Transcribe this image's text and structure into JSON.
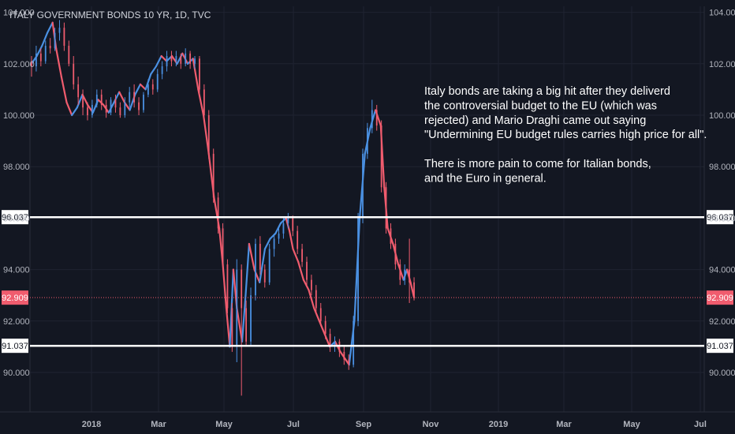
{
  "chart_data": {
    "type": "candlestick",
    "title": "ITALY GOVERNMENT BONDS 10 YR, 1D, TVC",
    "ylim": [
      88.2,
      104.6
    ],
    "y_ticks": [
      "104.000",
      "102.000",
      "100.000",
      "98.000",
      "96.000",
      "94.000",
      "92.000",
      "90.000"
    ],
    "x_ticks": [
      "2018",
      "Mar",
      "May",
      "Jul",
      "Sep",
      "Nov",
      "2019",
      "Mar",
      "May",
      "Jul"
    ],
    "levels": [
      {
        "label": "96.037",
        "value": 96.037,
        "style": "white"
      },
      {
        "label": "91.037",
        "value": 91.037,
        "style": "white"
      },
      {
        "label": "92.909",
        "value": 92.909,
        "style": "last-price"
      }
    ],
    "close_path": [
      [
        0,
        102.0
      ],
      [
        3,
        102.3
      ],
      [
        6,
        102.7
      ],
      [
        9,
        103.2
      ],
      [
        12,
        103.6
      ],
      [
        14,
        102.6
      ],
      [
        17,
        101.5
      ],
      [
        20,
        100.5
      ],
      [
        23,
        100.0
      ],
      [
        26,
        100.3
      ],
      [
        29,
        100.8
      ],
      [
        32,
        100.4
      ],
      [
        35,
        100.1
      ],
      [
        38,
        100.6
      ],
      [
        41,
        100.4
      ],
      [
        44,
        100.1
      ],
      [
        47,
        100.5
      ],
      [
        50,
        100.9
      ],
      [
        53,
        100.5
      ],
      [
        56,
        100.2
      ],
      [
        59,
        100.8
      ],
      [
        62,
        101.2
      ],
      [
        65,
        101.0
      ],
      [
        68,
        101.6
      ],
      [
        71,
        101.9
      ],
      [
        74,
        102.3
      ],
      [
        77,
        102.1
      ],
      [
        80,
        102.3
      ],
      [
        83,
        102.0
      ],
      [
        86,
        102.4
      ],
      [
        89,
        102.0
      ],
      [
        92,
        102.2
      ],
      [
        95,
        101.0
      ],
      [
        98,
        100.0
      ],
      [
        101,
        98.5
      ],
      [
        104,
        96.8
      ],
      [
        107,
        95.6
      ],
      [
        109,
        94.2
      ],
      [
        111,
        92.5
      ],
      [
        113,
        91.0
      ],
      [
        115,
        94.0
      ],
      [
        117,
        92.5
      ],
      [
        120,
        91.2
      ],
      [
        122,
        93.0
      ],
      [
        124,
        95.0
      ],
      [
        127,
        94.0
      ],
      [
        130,
        93.5
      ],
      [
        133,
        94.8
      ],
      [
        136,
        95.2
      ],
      [
        139,
        95.4
      ],
      [
        142,
        95.8
      ],
      [
        145,
        96.0
      ],
      [
        147,
        95.5
      ],
      [
        149,
        94.8
      ],
      [
        152,
        94.3
      ],
      [
        155,
        93.6
      ],
      [
        158,
        93.2
      ],
      [
        161,
        92.5
      ],
      [
        164,
        92.0
      ],
      [
        167,
        91.5
      ],
      [
        170,
        91.0
      ],
      [
        173,
        91.2
      ],
      [
        176,
        90.8
      ],
      [
        179,
        90.5
      ],
      [
        181,
        90.3
      ],
      [
        184,
        92.0
      ],
      [
        187,
        96.0
      ],
      [
        190,
        98.5
      ],
      [
        193,
        99.5
      ],
      [
        196,
        100.2
      ],
      [
        199,
        99.6
      ],
      [
        201,
        97.2
      ],
      [
        203,
        95.6
      ],
      [
        206,
        95.0
      ],
      [
        209,
        94.2
      ],
      [
        212,
        93.6
      ],
      [
        214,
        94.0
      ],
      [
        216,
        93.5
      ],
      [
        218,
        92.909
      ]
    ],
    "ohlc": [
      [
        0,
        102.1,
        102.3,
        101.5,
        101.9
      ],
      [
        1,
        101.9,
        102.7,
        101.7,
        102.4
      ],
      [
        2,
        102.4,
        102.6,
        101.9,
        102.1
      ],
      [
        3,
        102.1,
        102.9,
        102.0,
        102.7
      ],
      [
        4,
        102.7,
        103.0,
        102.4,
        102.6
      ],
      [
        5,
        102.6,
        103.4,
        102.5,
        103.2
      ],
      [
        6,
        103.2,
        103.7,
        102.9,
        103.4
      ],
      [
        7,
        103.4,
        103.6,
        102.5,
        102.7
      ],
      [
        8,
        102.7,
        102.9,
        101.9,
        102.0
      ],
      [
        9,
        102.0,
        102.3,
        101.0,
        101.2
      ],
      [
        10,
        101.2,
        101.5,
        100.4,
        100.7
      ],
      [
        11,
        100.7,
        101.0,
        100.0,
        100.3
      ],
      [
        12,
        100.3,
        100.5,
        99.8,
        100.0
      ],
      [
        13,
        100.0,
        100.6,
        99.9,
        100.4
      ],
      [
        14,
        100.4,
        101.0,
        100.3,
        100.8
      ],
      [
        15,
        100.8,
        101.0,
        100.2,
        100.4
      ],
      [
        16,
        100.4,
        100.6,
        99.9,
        100.1
      ],
      [
        17,
        100.1,
        100.7,
        100.0,
        100.6
      ],
      [
        18,
        100.6,
        100.8,
        100.1,
        100.3
      ],
      [
        19,
        100.3,
        100.5,
        99.9,
        100.0
      ],
      [
        20,
        100.0,
        100.7,
        99.9,
        100.5
      ],
      [
        21,
        100.5,
        101.1,
        100.3,
        100.9
      ],
      [
        22,
        100.9,
        101.2,
        100.3,
        100.5
      ],
      [
        23,
        100.5,
        100.7,
        100.0,
        100.2
      ],
      [
        24,
        100.2,
        100.9,
        100.1,
        100.8
      ],
      [
        25,
        100.8,
        101.4,
        100.7,
        101.2
      ],
      [
        26,
        101.2,
        101.4,
        100.8,
        101.0
      ],
      [
        27,
        101.0,
        101.8,
        100.9,
        101.6
      ],
      [
        28,
        101.6,
        102.1,
        101.4,
        101.9
      ],
      [
        29,
        101.9,
        102.5,
        101.7,
        102.3
      ],
      [
        30,
        102.3,
        102.5,
        101.9,
        102.1
      ],
      [
        31,
        102.1,
        102.5,
        101.9,
        102.3
      ],
      [
        32,
        102.3,
        102.4,
        101.8,
        102.0
      ],
      [
        33,
        102.0,
        102.6,
        101.9,
        102.4
      ],
      [
        34,
        102.4,
        102.5,
        101.8,
        102.0
      ],
      [
        35,
        102.0,
        102.3,
        101.8,
        102.2
      ],
      [
        36,
        102.2,
        102.3,
        100.8,
        101.0
      ],
      [
        37,
        101.0,
        101.2,
        99.8,
        100.0
      ],
      [
        38,
        100.0,
        100.2,
        98.3,
        98.5
      ],
      [
        39,
        98.5,
        98.7,
        96.6,
        96.8
      ],
      [
        40,
        96.8,
        97.0,
        95.4,
        95.6
      ],
      [
        41,
        95.6,
        95.8,
        94.0,
        94.2
      ],
      [
        42,
        94.2,
        94.4,
        92.3,
        92.5
      ],
      [
        43,
        92.5,
        92.7,
        90.8,
        91.0
      ],
      [
        44,
        91.0,
        94.4,
        90.4,
        94.0
      ],
      [
        45,
        94.0,
        94.2,
        89.1,
        92.5
      ],
      [
        46,
        92.5,
        92.8,
        91.0,
        91.2
      ],
      [
        47,
        91.2,
        93.3,
        91.0,
        93.0
      ],
      [
        48,
        93.0,
        95.2,
        92.8,
        95.0
      ],
      [
        49,
        95.0,
        95.3,
        93.8,
        94.0
      ],
      [
        50,
        94.0,
        94.2,
        93.3,
        93.5
      ],
      [
        51,
        93.5,
        95.0,
        93.4,
        94.8
      ],
      [
        52,
        94.8,
        95.4,
        94.5,
        95.2
      ],
      [
        53,
        95.2,
        95.6,
        95.0,
        95.4
      ],
      [
        54,
        95.4,
        96.0,
        95.2,
        95.8
      ],
      [
        55,
        95.8,
        96.2,
        95.6,
        96.0
      ],
      [
        56,
        96.0,
        96.1,
        95.3,
        95.5
      ],
      [
        57,
        95.5,
        95.7,
        94.6,
        94.8
      ],
      [
        58,
        94.8,
        95.0,
        94.1,
        94.3
      ],
      [
        59,
        94.3,
        94.5,
        93.4,
        93.6
      ],
      [
        60,
        93.6,
        93.8,
        93.0,
        93.2
      ],
      [
        61,
        93.2,
        93.4,
        92.3,
        92.5
      ],
      [
        62,
        92.5,
        92.7,
        91.8,
        92.0
      ],
      [
        63,
        92.0,
        92.2,
        91.3,
        91.5
      ],
      [
        64,
        91.5,
        91.7,
        90.8,
        91.0
      ],
      [
        65,
        91.0,
        91.4,
        90.8,
        91.2
      ],
      [
        66,
        91.2,
        91.3,
        90.6,
        90.8
      ],
      [
        67,
        90.8,
        91.0,
        90.3,
        90.5
      ],
      [
        68,
        90.5,
        90.7,
        90.1,
        90.3
      ],
      [
        69,
        90.3,
        92.2,
        90.2,
        92.0
      ],
      [
        70,
        92.0,
        96.2,
        91.8,
        96.0
      ],
      [
        71,
        96.0,
        98.7,
        95.8,
        98.5
      ],
      [
        72,
        98.5,
        99.7,
        98.3,
        99.5
      ],
      [
        73,
        99.5,
        100.6,
        99.3,
        100.2
      ],
      [
        74,
        100.2,
        100.4,
        99.4,
        99.6
      ],
      [
        75,
        99.6,
        99.8,
        97.0,
        97.2
      ],
      [
        76,
        97.2,
        97.4,
        95.4,
        95.6
      ],
      [
        77,
        95.6,
        95.8,
        94.8,
        95.0
      ],
      [
        78,
        95.0,
        95.2,
        94.0,
        94.2
      ],
      [
        79,
        94.2,
        94.4,
        93.4,
        93.6
      ],
      [
        80,
        93.6,
        94.2,
        93.4,
        94.0
      ],
      [
        81,
        94.0,
        95.2,
        92.7,
        93.5
      ],
      [
        82,
        93.5,
        93.7,
        92.8,
        92.909
      ]
    ]
  },
  "title": "ITALY GOVERNMENT BONDS 10 YR, 1D, TVC",
  "annotation": {
    "lines": [
      "Italy bonds are taking a big hit after they deliverd",
      "the controversial budget to the EU (which was",
      "rejected) and Mario Draghi came out saying",
      "\"Undermining EU budget rules carries high price for all\".",
      "",
      "There is more pain to come for Italian bonds,",
      "and the Euro in general."
    ]
  },
  "colors": {
    "background": "#131722",
    "grid": "#1f2331",
    "up": "#4a90e2",
    "down": "#f05c6e",
    "level": "#ffffff",
    "last_price": "#f05c6e",
    "text": "#b2b5be"
  }
}
